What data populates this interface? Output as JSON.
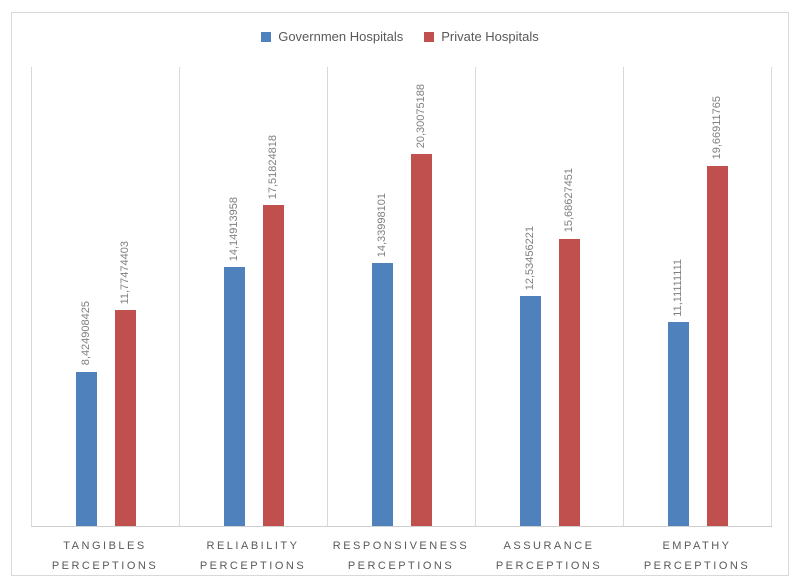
{
  "chart_data": {
    "type": "bar",
    "title": "",
    "orientation": "vertical-grouped",
    "categories": [
      "TANGIBLES PERCEPTIONS",
      "RELIABILITY PERCEPTIONS",
      "RESPONSIVENESS PERCEPTIONS",
      "ASSURANCE PERCEPTIONS",
      "EMPATHY PERCEPTIONS"
    ],
    "category_lines": [
      [
        "TANGIBLES",
        "PERCEPTIONS"
      ],
      [
        "RELIABILITY",
        "PERCEPTIONS"
      ],
      [
        "RESPONSIVENESS",
        "PERCEPTIONS"
      ],
      [
        "ASSURANCE",
        "PERCEPTIONS"
      ],
      [
        "EMPATHY",
        "PERCEPTIONS"
      ]
    ],
    "series": [
      {
        "name": "Governmen Hospitals",
        "color": "#4F81BD",
        "values": [
          8.424908425,
          14.14913958,
          14.33998101,
          12.53456221,
          11.11111111
        ],
        "labels": [
          "8,424908425",
          "14,14913958",
          "14,33998101",
          "12,53456221",
          "11,11111111"
        ]
      },
      {
        "name": "Private Hospitals",
        "color": "#C0504D",
        "values": [
          11.77474403,
          17.51824818,
          20.30075188,
          15.68627451,
          19.66911765
        ],
        "labels": [
          "11,77474403",
          "17,51824818",
          "20,30075188",
          "15,68627451",
          "19,66911765"
        ]
      }
    ],
    "ylim": [
      0,
      25
    ],
    "y_axis_labels_visible": false,
    "gridlines": "vertical category separators only",
    "data_label_rotation": "vertical-bottom-to-top",
    "decimal_separator": ",",
    "legend_position": "top-center"
  },
  "style": {
    "frame_border_color": "#d9d9d9",
    "separator_color": "#d9d9d9",
    "axis_line_color": "#cfcfcf",
    "data_label_color": "#808080",
    "category_label_color": "#595959",
    "legend_text_color": "#595959",
    "background": "#ffffff"
  }
}
